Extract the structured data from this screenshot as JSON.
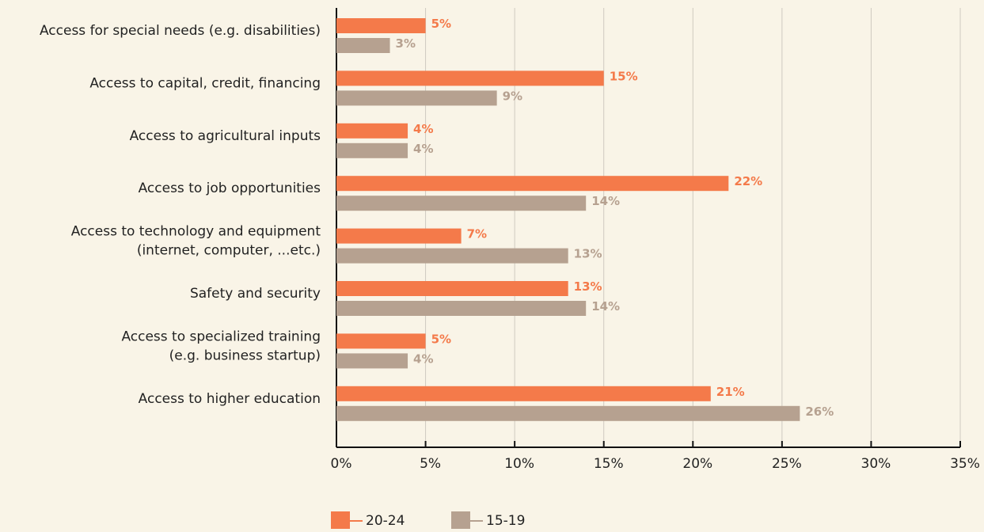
{
  "chart_data": {
    "type": "barh",
    "categories": [
      "Access for special needs (e.g. disabilities)",
      "Access to capital, credit, financing",
      "Access to agricultural inputs",
      "Access to job opportunities",
      "Access to technology and equipment\n(internet, computer, ...etc.)",
      "Safety and security",
      "Access to specialized training\n(e.g. business startup)",
      "Access to higher education"
    ],
    "series": [
      {
        "name": "20-24",
        "color": "#f47a4a",
        "values": [
          5,
          15,
          4,
          22,
          7,
          13,
          5,
          21
        ],
        "value_labels": [
          "5%",
          "15%",
          "4%",
          "22%",
          "7%",
          "13%",
          "5%",
          "21%"
        ]
      },
      {
        "name": "15-19",
        "color": "#b6a190",
        "values": [
          3,
          9,
          4,
          14,
          13,
          14,
          4,
          26
        ],
        "value_labels": [
          "3%",
          "9%",
          "4%",
          "14%",
          "13%",
          "14%",
          "4%",
          "26%"
        ]
      }
    ],
    "xlim": [
      0,
      35
    ],
    "xticks": [
      {
        "value": 0,
        "label": "0%"
      },
      {
        "value": 5,
        "label": "5%"
      },
      {
        "value": 10,
        "label": "10%"
      },
      {
        "value": 15,
        "label": "15%"
      },
      {
        "value": 20,
        "label": "20%"
      },
      {
        "value": 25,
        "label": "25%"
      },
      {
        "value": 30,
        "label": "30%"
      },
      {
        "value": 35,
        "label": "35%"
      }
    ],
    "grid": true,
    "legend": "bottom"
  }
}
